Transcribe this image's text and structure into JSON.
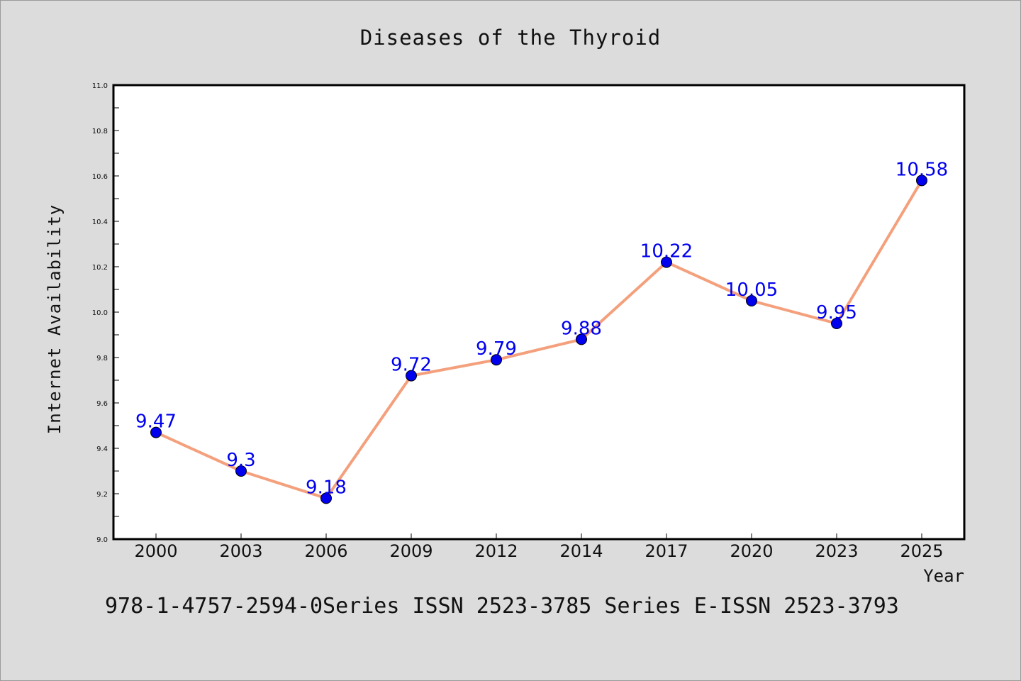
{
  "chart_data": {
    "type": "line",
    "title": "Diseases of the Thyroid",
    "xlabel": "Year",
    "ylabel": "Internet Availability",
    "categories": [
      "2000",
      "2003",
      "2006",
      "2009",
      "2012",
      "2014",
      "2017",
      "2020",
      "2023",
      "2025"
    ],
    "series": [
      {
        "values": [
          9.47,
          9.3,
          9.18,
          9.72,
          9.79,
          9.88,
          10.22,
          10.05,
          9.95,
          10.58
        ],
        "data_labels": [
          "9.47",
          "9.3",
          "9.18",
          "9.72",
          "9.79",
          "9.88",
          "10.22",
          "10.05",
          "9.95",
          "10.58"
        ]
      }
    ],
    "ylim": [
      9.0,
      11.0
    ],
    "yticks": [
      "9.0",
      "9.2",
      "9.4",
      "9.6",
      "9.8",
      "10.0",
      "10.2",
      "10.4",
      "10.6",
      "10.8",
      "11.0"
    ],
    "grid": false,
    "legend": "none",
    "colors": {
      "line": "#f4a07c",
      "marker": "#0000ee",
      "data_label": "#0000ee",
      "background": "#dcdcdc",
      "plot_background": "#ffffff"
    }
  },
  "footer": {
    "text": "978-1-4757-2594-0Series ISSN 2523-3785 Series E-ISSN 2523-3793"
  }
}
